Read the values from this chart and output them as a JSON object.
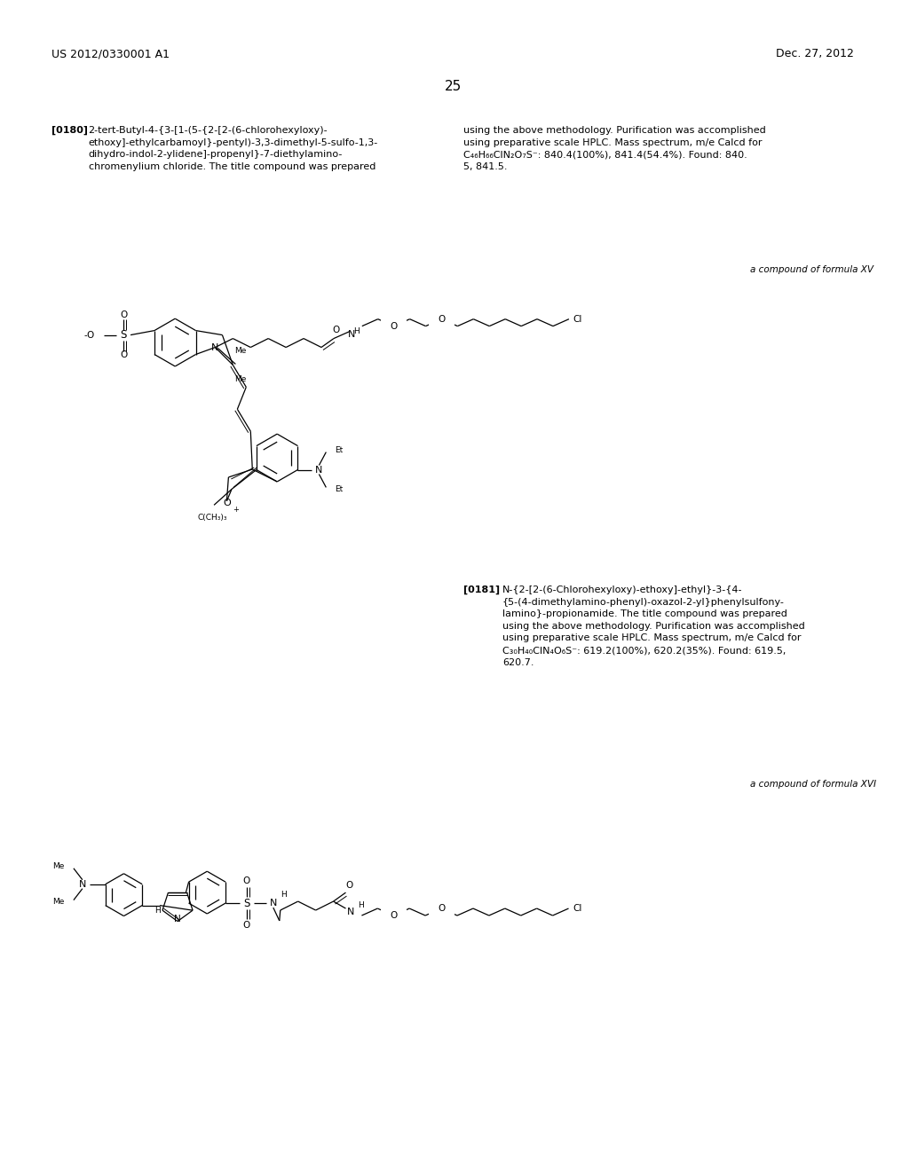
{
  "page_width": 10.24,
  "page_height": 13.2,
  "background_color": "#ffffff",
  "header_left": "US 2012/0330001 A1",
  "header_right": "Dec. 27, 2012",
  "page_number": "25",
  "label_180": "[0180]",
  "text_180_left": "2-tert-Butyl-4-{3-[1-(5-{2-[2-(6-chlorohexyloxy)-\nethoxy]-ethylcarbamoyl}-pentyl)-3,3-dimethyl-5-sulfo-1,3-\ndihydro-indol-2-ylidene]-propenyl}-7-diethylamino-\nchromenylium chloride. The title compound was prepared",
  "text_180_right": "using the above methodology. Purification was accomplished\nusing preparative scale HPLC. Mass spectrum, m/e Calcd for\nC₄₆H₆₆ClN₂O₇S⁻: 840.4(100%), 841.4(54.4%). Found: 840.\n5, 841.5.",
  "formula_XV_label": "a compound of formula XV",
  "label_181": "[0181]",
  "text_181_right": "N-{2-[2-(6-Chlorohexyloxy)-ethoxy]-ethyl}-3-{4-\n{5-(4-dimethylamino-phenyl)-oxazol-2-yl}phenylsulfony-\nlamino}-propionamide. The title compound was prepared\nusing the above methodology. Purification was accomplished\nusing preparative scale HPLC. Mass spectrum, m/e Calcd for\nC₃₀H₄₀ClN₄O₆S⁻: 619.2(100%), 620.2(35%). Found: 619.5,\n620.7.",
  "formula_XVI_label": "a compound of formula XVI",
  "text_color": "#000000",
  "line_color": "#000000",
  "font_size_header": 9.0,
  "font_size_body": 8.0,
  "font_size_page_num": 11,
  "font_size_formula_label": 7.5,
  "font_size_chem": 7.0
}
